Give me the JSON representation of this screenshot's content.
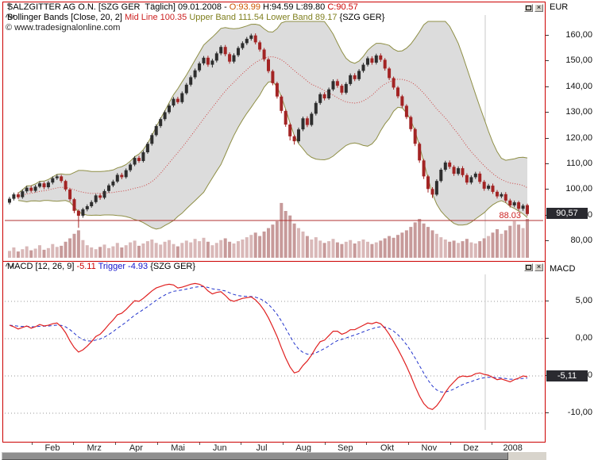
{
  "window": {
    "copyright": "© www.tradesignalonline.com"
  },
  "icons": {
    "close_glyph": "×"
  },
  "price_panel": {
    "title": {
      "instrument": "SALZGITTER AG O.N. [SZG GER  Täglich] 09.01.2008 - ",
      "open": "O:93.99 ",
      "high": "H:94.59 ",
      "low": "L:89.80 ",
      "close": "C:90.57"
    },
    "indicator": {
      "name": "Bollinger Bands [Close, 20, 2] ",
      "mid": "Mid Line 100.35 ",
      "upper": "Upper Band 111.54 ",
      "lower": "Lower Band 89.17 ",
      "suffix": "{SZG GER}"
    },
    "axis_label": "EUR",
    "price_badge": "90,57",
    "ticks": [
      {
        "value": 160,
        "label": "160,00"
      },
      {
        "value": 150,
        "label": "150,00"
      },
      {
        "value": 140,
        "label": "140,00"
      },
      {
        "value": 130,
        "label": "130,00"
      },
      {
        "value": 120,
        "label": "120,00"
      },
      {
        "value": 110,
        "label": "110,00"
      },
      {
        "value": 100,
        "label": "100,00"
      },
      {
        "value": 90,
        "label": "90,00"
      },
      {
        "value": 80,
        "label": "80,00"
      }
    ]
  },
  "macd_panel": {
    "title": {
      "name": "MACD [12, 26, 9] ",
      "value": "-5.11 ",
      "trigger": "Trigger -4.93 ",
      "suffix": "{SZG GER}"
    },
    "axis_label": "MACD",
    "badge": "-5,11",
    "ticks": [
      {
        "value": 5,
        "label": "5,00"
      },
      {
        "value": 0,
        "label": "0,00"
      },
      {
        "value": -5,
        "label": "-5,00"
      },
      {
        "value": -10,
        "label": "-10,00"
      }
    ]
  },
  "time_axis": {
    "labels": [
      "Feb",
      "Mrz",
      "Apr",
      "Mai",
      "Jun",
      "Jul",
      "Aug",
      "Sep",
      "Okt",
      "Nov",
      "Dez",
      "2008"
    ]
  },
  "chart_data": {
    "type": "candlestick",
    "instrument": "SALZGITTER AG O.N. (SZG GER), Täglich",
    "price_axis": {
      "min": 80,
      "max": 160,
      "unit": "EUR"
    },
    "macd_axis": {
      "min": -10,
      "max": 5
    },
    "bollinger": {
      "source": "Close",
      "period": 20,
      "deviation": 2,
      "mid_line": 100.35,
      "upper_band": 111.54,
      "lower_band": 89.17
    },
    "macd": {
      "fast": 12,
      "slow": 26,
      "signal": 9,
      "value": -5.11,
      "trigger": -4.93
    },
    "last_quote": {
      "date": "09.01.2008",
      "open": 93.99,
      "high": 94.59,
      "low": 89.8,
      "close": 90.57
    },
    "hline": {
      "value": 88.03,
      "label": "88.03"
    },
    "candles": [
      [
        95.0,
        97.2,
        94.3,
        96.5
      ],
      [
        96.5,
        98.9,
        95.8,
        98.2
      ],
      [
        98.2,
        99.0,
        96.4,
        97.1
      ],
      [
        97.1,
        100.1,
        96.5,
        99.4
      ],
      [
        99.4,
        101.5,
        98.7,
        100.8
      ],
      [
        100.8,
        101.6,
        98.9,
        99.6
      ],
      [
        99.6,
        101.9,
        99.0,
        101.2
      ],
      [
        101.2,
        103.3,
        100.6,
        102.5
      ],
      [
        102.5,
        103.1,
        100.2,
        101.0
      ],
      [
        101.0,
        103.5,
        100.4,
        102.8
      ],
      [
        102.8,
        105.2,
        102.1,
        104.5
      ],
      [
        104.5,
        106.0,
        103.8,
        105.2
      ],
      [
        105.2,
        105.8,
        102.7,
        103.4
      ],
      [
        103.4,
        103.9,
        99.4,
        100.1
      ],
      [
        100.1,
        100.6,
        95.5,
        96.3
      ],
      [
        96.3,
        96.8,
        90.9,
        91.8
      ],
      [
        91.8,
        92.3,
        85.2,
        89.9
      ],
      [
        89.9,
        93.0,
        89.1,
        92.4
      ],
      [
        92.4,
        94.3,
        91.6,
        93.6
      ],
      [
        93.6,
        95.9,
        93.0,
        95.2
      ],
      [
        95.2,
        98.4,
        94.6,
        97.8
      ],
      [
        97.8,
        98.6,
        96.1,
        96.9
      ],
      [
        96.9,
        100.2,
        96.3,
        99.5
      ],
      [
        99.5,
        102.4,
        98.8,
        101.7
      ],
      [
        101.7,
        103.9,
        101.0,
        103.2
      ],
      [
        103.2,
        106.5,
        102.6,
        105.8
      ],
      [
        105.8,
        106.6,
        104.1,
        104.9
      ],
      [
        104.9,
        108.3,
        104.3,
        107.6
      ],
      [
        107.6,
        110.5,
        106.9,
        109.8
      ],
      [
        109.8,
        113.1,
        109.2,
        112.4
      ],
      [
        112.4,
        113.2,
        110.5,
        111.2
      ],
      [
        111.2,
        115.3,
        110.6,
        114.6
      ],
      [
        114.6,
        118.6,
        114.0,
        117.9
      ],
      [
        117.9,
        122.0,
        117.2,
        121.3
      ],
      [
        121.3,
        125.5,
        120.7,
        124.8
      ],
      [
        124.8,
        128.2,
        124.1,
        127.5
      ],
      [
        127.5,
        130.9,
        126.8,
        130.2
      ],
      [
        130.2,
        133.5,
        129.5,
        132.8
      ],
      [
        132.8,
        136.1,
        132.1,
        135.4
      ],
      [
        135.4,
        136.2,
        133.4,
        134.1
      ],
      [
        134.1,
        138.3,
        133.5,
        137.6
      ],
      [
        137.6,
        141.6,
        137.0,
        140.9
      ],
      [
        140.9,
        144.5,
        140.2,
        143.8
      ],
      [
        143.8,
        147.2,
        143.1,
        146.5
      ],
      [
        146.5,
        149.9,
        145.8,
        149.2
      ],
      [
        149.2,
        152.1,
        148.5,
        151.4
      ],
      [
        151.4,
        152.2,
        147.9,
        148.7
      ],
      [
        148.7,
        151.0,
        147.6,
        150.3
      ],
      [
        150.3,
        153.8,
        149.6,
        153.1
      ],
      [
        153.1,
        156.3,
        152.4,
        155.6
      ],
      [
        155.6,
        156.4,
        152.0,
        152.8
      ],
      [
        152.8,
        153.5,
        149.1,
        149.9
      ],
      [
        149.9,
        153.1,
        149.2,
        152.4
      ],
      [
        152.4,
        155.9,
        151.7,
        155.2
      ],
      [
        155.2,
        157.8,
        154.5,
        157.1
      ],
      [
        157.1,
        159.5,
        156.4,
        158.8
      ],
      [
        158.8,
        160.8,
        158.1,
        160.1
      ],
      [
        160.1,
        160.9,
        156.6,
        157.4
      ],
      [
        157.4,
        158.1,
        153.8,
        154.6
      ],
      [
        154.6,
        155.2,
        150.0,
        150.8
      ],
      [
        150.8,
        151.4,
        145.4,
        146.2
      ],
      [
        146.2,
        146.8,
        140.7,
        141.5
      ],
      [
        141.5,
        142.1,
        135.5,
        136.3
      ],
      [
        136.3,
        136.9,
        129.8,
        130.7
      ],
      [
        130.7,
        131.3,
        124.5,
        125.4
      ],
      [
        125.4,
        126.0,
        119.2,
        120.8
      ],
      [
        120.8,
        121.4,
        117.6,
        118.9
      ],
      [
        118.9,
        124.2,
        118.2,
        123.5
      ],
      [
        123.5,
        128.5,
        122.8,
        127.8
      ],
      [
        127.8,
        128.6,
        124.4,
        125.2
      ],
      [
        125.2,
        130.3,
        124.6,
        129.6
      ],
      [
        129.6,
        134.5,
        128.9,
        133.8
      ],
      [
        133.8,
        137.9,
        133.1,
        137.2
      ],
      [
        137.2,
        138.0,
        134.8,
        135.6
      ],
      [
        135.6,
        139.8,
        135.0,
        139.1
      ],
      [
        139.1,
        143.0,
        138.4,
        142.3
      ],
      [
        142.3,
        143.1,
        139.7,
        140.5
      ],
      [
        140.5,
        141.2,
        137.0,
        137.8
      ],
      [
        137.8,
        141.9,
        137.1,
        141.2
      ],
      [
        141.2,
        145.3,
        140.5,
        144.6
      ],
      [
        144.6,
        145.4,
        142.3,
        143.1
      ],
      [
        143.1,
        147.0,
        142.4,
        146.3
      ],
      [
        146.3,
        149.4,
        145.6,
        148.7
      ],
      [
        148.7,
        151.9,
        148.0,
        151.2
      ],
      [
        151.2,
        152.0,
        148.7,
        149.5
      ],
      [
        149.5,
        153.0,
        148.8,
        152.3
      ],
      [
        152.3,
        153.1,
        149.8,
        150.6
      ],
      [
        150.6,
        151.3,
        146.4,
        147.2
      ],
      [
        147.2,
        147.8,
        142.7,
        143.5
      ],
      [
        143.5,
        144.1,
        139.0,
        139.8
      ],
      [
        139.8,
        140.4,
        135.6,
        136.4
      ],
      [
        136.4,
        137.0,
        131.9,
        132.7
      ],
      [
        132.7,
        133.3,
        127.5,
        128.3
      ],
      [
        128.3,
        128.9,
        122.7,
        123.6
      ],
      [
        123.6,
        124.2,
        117.0,
        117.9
      ],
      [
        117.9,
        118.5,
        110.5,
        111.4
      ],
      [
        111.4,
        112.0,
        104.2,
        105.2
      ],
      [
        105.2,
        105.8,
        98.9,
        100.3
      ],
      [
        100.3,
        101.0,
        96.8,
        98.1
      ],
      [
        98.1,
        104.1,
        97.5,
        103.4
      ],
      [
        103.4,
        108.5,
        102.8,
        107.8
      ],
      [
        107.8,
        111.3,
        107.1,
        110.6
      ],
      [
        110.6,
        111.4,
        108.1,
        108.9
      ],
      [
        108.9,
        109.6,
        105.4,
        106.2
      ],
      [
        106.2,
        109.1,
        105.5,
        108.4
      ],
      [
        108.4,
        109.2,
        104.9,
        105.7
      ],
      [
        105.7,
        106.4,
        102.0,
        102.8
      ],
      [
        102.8,
        105.6,
        102.1,
        104.9
      ],
      [
        104.9,
        107.0,
        104.2,
        106.3
      ],
      [
        106.3,
        107.1,
        102.3,
        103.1
      ],
      [
        103.1,
        103.8,
        99.6,
        100.4
      ],
      [
        100.4,
        102.3,
        99.7,
        101.6
      ],
      [
        101.6,
        102.4,
        98.4,
        99.2
      ],
      [
        99.2,
        99.9,
        96.6,
        97.4
      ],
      [
        97.4,
        99.0,
        96.7,
        98.3
      ],
      [
        98.3,
        99.1,
        95.0,
        95.8
      ],
      [
        95.8,
        96.5,
        93.1,
        93.9
      ],
      [
        93.9,
        95.8,
        93.2,
        95.1
      ],
      [
        95.1,
        95.7,
        91.9,
        92.6
      ],
      [
        92.6,
        94.5,
        91.8,
        93.8
      ],
      [
        93.99,
        94.59,
        89.8,
        90.57
      ]
    ],
    "volumes": [
      1.2,
      1.8,
      1.1,
      1.5,
      2.0,
      1.3,
      1.6,
      2.2,
      1.4,
      1.7,
      2.4,
      1.9,
      2.1,
      2.8,
      3.4,
      4.2,
      4.8,
      3.1,
      2.2,
      1.8,
      1.5,
      1.9,
      2.3,
      1.7,
      2.0,
      2.6,
      1.8,
      2.2,
      2.7,
      3.0,
      2.1,
      2.5,
      2.9,
      3.2,
      2.6,
      2.3,
      2.8,
      3.1,
      2.4,
      2.0,
      2.6,
      3.0,
      2.7,
      3.3,
      2.9,
      3.5,
      2.8,
      2.2,
      2.6,
      3.1,
      3.4,
      2.8,
      2.5,
      2.9,
      3.2,
      3.6,
      4.0,
      4.4,
      3.8,
      4.6,
      5.2,
      5.8,
      6.4,
      9.6,
      8.2,
      7.4,
      6.0,
      5.2,
      4.6,
      3.8,
      3.2,
      3.6,
      3.0,
      2.6,
      2.9,
      3.3,
      2.7,
      2.4,
      2.8,
      3.1,
      2.5,
      2.9,
      3.2,
      2.8,
      2.4,
      2.7,
      3.0,
      3.4,
      3.8,
      3.5,
      4.0,
      4.4,
      4.8,
      5.4,
      6.2,
      6.8,
      6.0,
      5.4,
      4.8,
      4.2,
      3.6,
      3.2,
      2.8,
      3.0,
      2.6,
      2.9,
      3.3,
      2.7,
      2.5,
      2.9,
      3.4,
      3.8,
      4.4,
      5.0,
      4.2,
      4.8,
      5.6,
      6.4,
      5.8,
      5.2,
      6.8
    ],
    "macd_series": [
      1.8,
      1.6,
      1.3,
      1.5,
      1.7,
      1.4,
      1.6,
      1.9,
      1.7,
      1.8,
      2.0,
      2.1,
      1.6,
      0.8,
      -0.3,
      -1.2,
      -1.8,
      -1.5,
      -1.0,
      -0.4,
      0.3,
      0.6,
      1.2,
      1.9,
      2.5,
      3.2,
      3.4,
      3.9,
      4.5,
      5.1,
      5.0,
      5.4,
      5.9,
      6.4,
      6.8,
      7.0,
      7.2,
      7.3,
      7.2,
      6.8,
      6.9,
      7.1,
      7.3,
      7.4,
      7.3,
      7.0,
      6.4,
      6.0,
      6.2,
      6.3,
      5.8,
      5.2,
      5.0,
      5.2,
      5.4,
      5.5,
      5.6,
      5.2,
      4.6,
      3.8,
      2.8,
      1.6,
      0.3,
      -1.2,
      -2.6,
      -3.8,
      -4.6,
      -4.4,
      -3.6,
      -3.0,
      -2.2,
      -1.2,
      -0.4,
      -0.2,
      0.4,
      1.0,
      1.0,
      0.6,
      0.8,
      1.2,
      1.2,
      1.5,
      1.8,
      2.1,
      2.0,
      2.2,
      2.0,
      1.4,
      0.6,
      -0.4,
      -1.4,
      -2.5,
      -3.7,
      -5.0,
      -6.4,
      -7.7,
      -8.7,
      -9.3,
      -9.5,
      -9.0,
      -8.2,
      -7.2,
      -6.4,
      -5.8,
      -5.2,
      -5.0,
      -5.1,
      -5.0,
      -4.7,
      -4.6,
      -4.8,
      -4.9,
      -5.2,
      -5.5,
      -5.4,
      -5.6,
      -5.8,
      -5.5,
      -5.3,
      -5.0,
      -5.11
    ],
    "colors": {
      "accent_border": "#cc0000",
      "candle_up": "#2e2e2e",
      "candle_down": "#a32424",
      "band_line": "#8f8f46",
      "band_fill": "#dcdcdc",
      "mid_line": "#cc4444",
      "volume_up": "#d9b8b8",
      "volume_down": "#c79a9a",
      "hline": "#b03030",
      "hline_text": "#cc2222",
      "macd_line": "#e02020",
      "trigger_line": "#2233cc",
      "grid": "#c8c8c8",
      "badge_bg": "#2a2a30"
    }
  }
}
